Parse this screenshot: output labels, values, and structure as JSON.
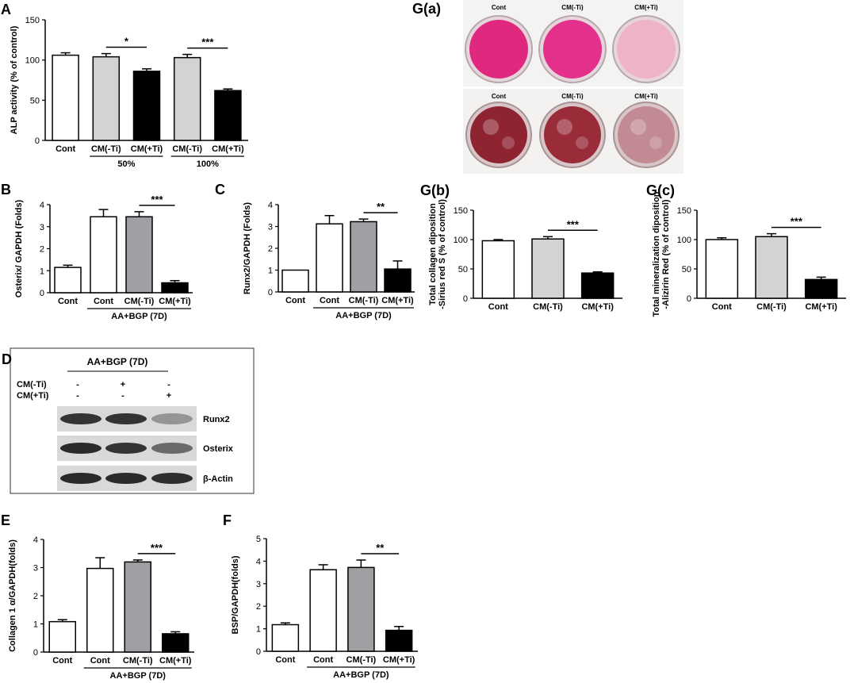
{
  "chart_data": [
    {
      "id": "A",
      "panel_label": "A",
      "type": "bar",
      "ylabel": "ALP activity (% of control)",
      "ylim": [
        0,
        150
      ],
      "yticks": [
        0,
        50,
        100,
        150
      ],
      "categories": [
        "Cont",
        "CM(-Ti)",
        "CM(+Ti)",
        "CM(-Ti)",
        "CM(+Ti)"
      ],
      "values": [
        106,
        104,
        86,
        103,
        62
      ],
      "errors": [
        3,
        4,
        3,
        4,
        2
      ],
      "fills": [
        "#ffffff",
        "#d3d3d3",
        "#000000",
        "#d3d3d3",
        "#000000"
      ],
      "groups": [
        {
          "label": "50%",
          "from": 1,
          "to": 2
        },
        {
          "label": "100%",
          "from": 3,
          "to": 4
        }
      ],
      "significance": [
        {
          "from": 1,
          "to": 2,
          "label": "*"
        },
        {
          "from": 3,
          "to": 4,
          "label": "***"
        }
      ]
    },
    {
      "id": "B",
      "panel_label": "B",
      "type": "bar",
      "ylabel": "Osterix/ GAPDH (Folds)",
      "ylim": [
        0,
        4
      ],
      "yticks": [
        0,
        1,
        2,
        3,
        4
      ],
      "categories": [
        "Cont",
        "Cont",
        "CM(-Ti)",
        "CM(+Ti)"
      ],
      "values": [
        1.15,
        3.45,
        3.45,
        0.45
      ],
      "errors": [
        0.1,
        0.33,
        0.23,
        0.1
      ],
      "fills": [
        "#ffffff",
        "#ffffff",
        "#a0a0a4",
        "#000000"
      ],
      "groups": [
        {
          "label": "AA+BGP (7D)",
          "from": 1,
          "to": 3
        }
      ],
      "significance": [
        {
          "from": 2,
          "to": 3,
          "label": "***"
        }
      ]
    },
    {
      "id": "C",
      "panel_label": "C",
      "type": "bar",
      "ylabel": "Runx2/GAPDH (Folds)",
      "ylim": [
        0,
        4
      ],
      "yticks": [
        0,
        1,
        2,
        3,
        4
      ],
      "categories": [
        "Cont",
        "Cont",
        "CM(-Ti)",
        "CM(+Ti)"
      ],
      "values": [
        1.0,
        3.12,
        3.22,
        1.05
      ],
      "errors": [
        0,
        0.38,
        0.12,
        0.37
      ],
      "fills": [
        "#ffffff",
        "#ffffff",
        "#a0a0a4",
        "#000000"
      ],
      "groups": [
        {
          "label": "AA+BGP (7D)",
          "from": 1,
          "to": 3
        }
      ],
      "significance": [
        {
          "from": 2,
          "to": 3,
          "label": "**"
        }
      ]
    },
    {
      "id": "Gb",
      "panel_label": "G(b)",
      "type": "bar",
      "ylabel": "Total collagen diposition -Sirius red S (% of control)",
      "ylabel_lines": [
        "Total collagen diposition",
        "-Sirius red S (% of control)"
      ],
      "ylim": [
        0,
        150
      ],
      "yticks": [
        0,
        50,
        100,
        150
      ],
      "categories": [
        "Cont",
        "CM(-Ti)",
        "CM(+Ti)"
      ],
      "values": [
        98,
        101,
        43
      ],
      "errors": [
        2,
        4,
        2
      ],
      "fills": [
        "#ffffff",
        "#d3d3d3",
        "#000000"
      ],
      "groups": [],
      "significance": [
        {
          "from": 1,
          "to": 2,
          "label": "***"
        }
      ]
    },
    {
      "id": "Gc",
      "panel_label": "G(c)",
      "type": "bar",
      "ylabel": "Total mineralization diposition -Alizirin Red (% of control)",
      "ylabel_lines": [
        "Total mineralization diposition",
        "-Alizirin Red (% of control)"
      ],
      "ylim": [
        0,
        150
      ],
      "yticks": [
        0,
        50,
        100,
        150
      ],
      "categories": [
        "Cont",
        "CM(-Ti)",
        "CM(+Ti)"
      ],
      "values": [
        100,
        105,
        32
      ],
      "errors": [
        3,
        5,
        4
      ],
      "fills": [
        "#ffffff",
        "#d3d3d3",
        "#000000"
      ],
      "groups": [],
      "significance": [
        {
          "from": 1,
          "to": 2,
          "label": "***"
        }
      ]
    },
    {
      "id": "E",
      "panel_label": "E",
      "type": "bar",
      "ylabel": "Collagen 1 α/GAPDH(folds)",
      "ylim": [
        0,
        4
      ],
      "yticks": [
        0,
        1,
        2,
        3,
        4
      ],
      "categories": [
        "Cont",
        "Cont",
        "CM(-Ti)",
        "CM(+Ti)"
      ],
      "values": [
        1.08,
        2.97,
        3.2,
        0.65
      ],
      "errors": [
        0.07,
        0.38,
        0.07,
        0.07
      ],
      "fills": [
        "#ffffff",
        "#ffffff",
        "#a0a0a4",
        "#000000"
      ],
      "groups": [
        {
          "label": "AA+BGP (7D)",
          "from": 1,
          "to": 3
        }
      ],
      "significance": [
        {
          "from": 2,
          "to": 3,
          "label": "***"
        }
      ]
    },
    {
      "id": "F",
      "panel_label": "F",
      "type": "bar",
      "ylabel": "BSP/GAPDH(folds)",
      "ylim": [
        0,
        5
      ],
      "yticks": [
        0,
        1,
        2,
        3,
        4,
        5
      ],
      "categories": [
        "Cont",
        "Cont",
        "CM(-Ti)",
        "CM(+Ti)"
      ],
      "values": [
        1.18,
        3.62,
        3.72,
        0.93
      ],
      "errors": [
        0.08,
        0.22,
        0.33,
        0.17
      ],
      "fills": [
        "#ffffff",
        "#ffffff",
        "#a0a0a4",
        "#000000"
      ],
      "groups": [
        {
          "label": "AA+BGP (7D)",
          "from": 1,
          "to": 3
        }
      ],
      "significance": [
        {
          "from": 2,
          "to": 3,
          "label": "**"
        }
      ]
    }
  ],
  "blot": {
    "panel_label": "D",
    "header": "AA+BGP (7D)",
    "row_labels": [
      "CM(-Ti)",
      "CM(+Ti)"
    ],
    "signs": [
      [
        "-",
        "+",
        "-"
      ],
      [
        "-",
        "-",
        "+"
      ]
    ],
    "bands": [
      {
        "label": "Runx2",
        "intensity": [
          0.85,
          0.85,
          0.4
        ]
      },
      {
        "label": "Osterix",
        "intensity": [
          0.9,
          0.85,
          0.6
        ]
      },
      {
        "label": "β-Actin",
        "intensity": [
          0.9,
          0.9,
          0.88
        ]
      }
    ]
  },
  "photos": {
    "panel_label": "G(a)",
    "top_labels": [
      "Cont",
      "CM(-Ti)",
      "CM(+Ti)"
    ],
    "bottom_labels": [
      "Cont",
      "CM(-Ti)",
      "CM(+Ti)"
    ],
    "top_colors": [
      "#e0287f",
      "#e3308a",
      "#efb3c8"
    ],
    "bottom_colors": [
      "#8e2432",
      "#9a2c3a",
      "#c28a92"
    ]
  }
}
